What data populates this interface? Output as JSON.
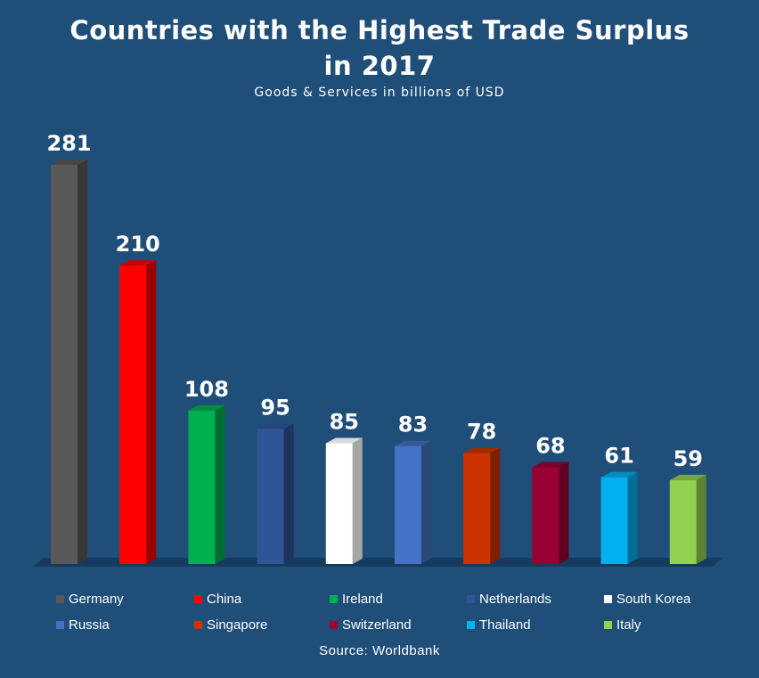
{
  "chart_data": {
    "type": "bar",
    "title": "Countries with the Highest Trade Surplus in 2017",
    "subtitle": "Goods & Services in billions of USD",
    "source": "Source: Worldbank",
    "categories": [
      "Germany",
      "China",
      "Ireland",
      "Netherlands",
      "South Korea",
      "Russia",
      "Singapore",
      "Switzerland",
      "Thailand",
      "Italy"
    ],
    "values": [
      281,
      210,
      108,
      95,
      85,
      83,
      78,
      68,
      61,
      59
    ],
    "colors": [
      "#595959",
      "#ff0000",
      "#00b050",
      "#2f5597",
      "#ffffff",
      "#4472c4",
      "#cc3300",
      "#990033",
      "#00b0f0",
      "#92d050"
    ],
    "ylim": [
      0,
      281
    ],
    "grid": false,
    "legend_position": "bottom",
    "data_labels": true,
    "style": "3d-bars"
  }
}
